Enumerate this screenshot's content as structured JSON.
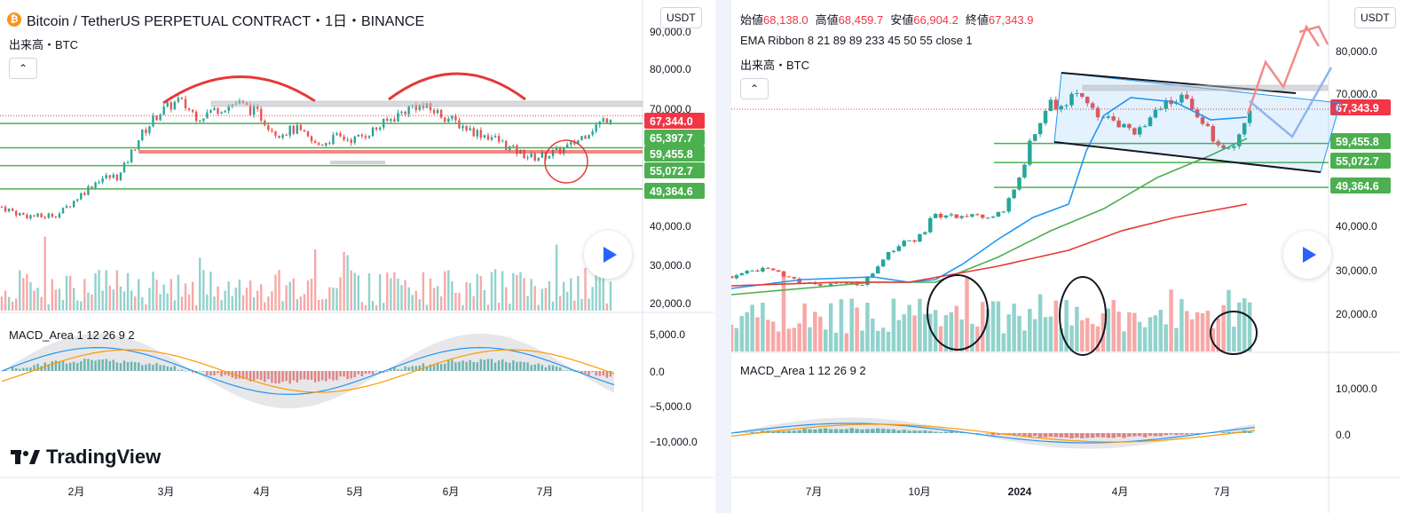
{
  "left": {
    "title": "Bitcoin / TetherUS PERPETUAL CONTRACT・1日・BINANCE",
    "btc_symbol": "₿",
    "volume_label": "出来高・BTC",
    "collapse_glyph": "⌃",
    "currency": "USDT",
    "macd_label": "MACD_Area 1 12 26 9 2",
    "logo_text": "TradingView",
    "price_axis": [
      "90,000.0",
      "80,000.0",
      "70,000.0",
      "40,000.0",
      "30,000.0",
      "20,000.0"
    ],
    "macd_axis": [
      "5,000.0",
      "0.0",
      "−5,000.0",
      "−10,000.0"
    ],
    "time_axis": [
      "2月",
      "3月",
      "4月",
      "5月",
      "6月",
      "7月"
    ],
    "price_tags": [
      {
        "text": "67,344.0",
        "color": "#f23645"
      },
      {
        "text": "65,397.7",
        "color": "#4caf50"
      },
      {
        "text": "59,455.8",
        "color": "#4caf50"
      },
      {
        "text": "55,072.7",
        "color": "#4caf50"
      },
      {
        "text": "49,364.6",
        "color": "#4caf50"
      }
    ]
  },
  "right": {
    "ohlc": [
      {
        "k": "始値",
        "v": "68,138.0"
      },
      {
        "k": "高値",
        "v": "68,459.7"
      },
      {
        "k": "安値",
        "v": "66,904.2"
      },
      {
        "k": "終値",
        "v": "67,343.9"
      }
    ],
    "ema_label": "EMA Ribbon 8 21 89 89 233 45 50 55 close 1",
    "volume_label": "出来高・BTC",
    "collapse_glyph": "⌃",
    "currency": "USDT",
    "macd_label": "MACD_Area 1 12 26 9 2",
    "price_axis": [
      "80,000.0",
      "70,000.0",
      "40,000.0",
      "30,000.0",
      "20,000.0"
    ],
    "macd_axis": [
      "10,000.0",
      "0.0"
    ],
    "time_axis": [
      "7月",
      "10月",
      "2024",
      "4月",
      "7月"
    ],
    "price_tags": [
      {
        "text": "67,343.9",
        "color": "#f23645"
      },
      {
        "text": "59,455.8",
        "color": "#4caf50"
      },
      {
        "text": "55,072.7",
        "color": "#4caf50"
      },
      {
        "text": "49,364.6",
        "color": "#4caf50"
      }
    ]
  },
  "chart_data": [
    {
      "type": "candlestick",
      "title": "Bitcoin / TetherUS PERPETUAL CONTRACT・1日・BINANCE",
      "x_ticks": [
        "2月",
        "3月",
        "4月",
        "5月",
        "6月",
        "7月"
      ],
      "y_ticks": [
        90000,
        80000,
        70000,
        40000,
        30000,
        20000
      ],
      "last_price": 67344.0,
      "horizontal_levels": [
        65397.7,
        59455.8,
        55072.7,
        49364.6
      ],
      "series": [
        {
          "name": "price_close_approx",
          "values": [
            45000,
            43000,
            42500,
            43500,
            48000,
            52000,
            52500,
            62000,
            68000,
            71000,
            67000,
            69000,
            70500,
            68000,
            63000,
            64000,
            60000,
            62000,
            61500,
            64000,
            67000,
            70000,
            68500,
            66000,
            63500,
            62000,
            59000,
            57000,
            58000,
            60000,
            64000,
            67344
          ]
        }
      ],
      "macd_axis": [
        5000,
        0,
        -5000,
        -10000
      ],
      "macd_label": "MACD_Area 1 12 26 9 2"
    },
    {
      "type": "candlestick",
      "title": "EMA Ribbon 8 21 89 89 233 45 50 55 close 1",
      "x_ticks": [
        "7月",
        "10月",
        "2024",
        "4月",
        "7月"
      ],
      "y_ticks": [
        80000,
        70000,
        40000,
        30000,
        20000
      ],
      "ohlc": {
        "open": 68138.0,
        "high": 68459.7,
        "low": 66904.2,
        "close": 67343.9
      },
      "horizontal_levels": [
        59455.8,
        55072.7,
        49364.6
      ],
      "series": [
        {
          "name": "price_close_approx",
          "values": [
            29000,
            29500,
            30500,
            30000,
            29200,
            27500,
            26500,
            27000,
            27200,
            27000,
            30000,
            34500,
            36500,
            37500,
            42500,
            43000,
            42000,
            43500,
            42000,
            44000,
            52000,
            62000,
            69000,
            68000,
            70500,
            67000,
            65000,
            64000,
            61000,
            66000,
            69000,
            70000,
            68500,
            63000,
            57500,
            60000,
            67344
          ]
        }
      ],
      "macd_axis": [
        10000,
        0
      ],
      "macd_label": "MACD_Area 1 12 26 9 2"
    }
  ]
}
